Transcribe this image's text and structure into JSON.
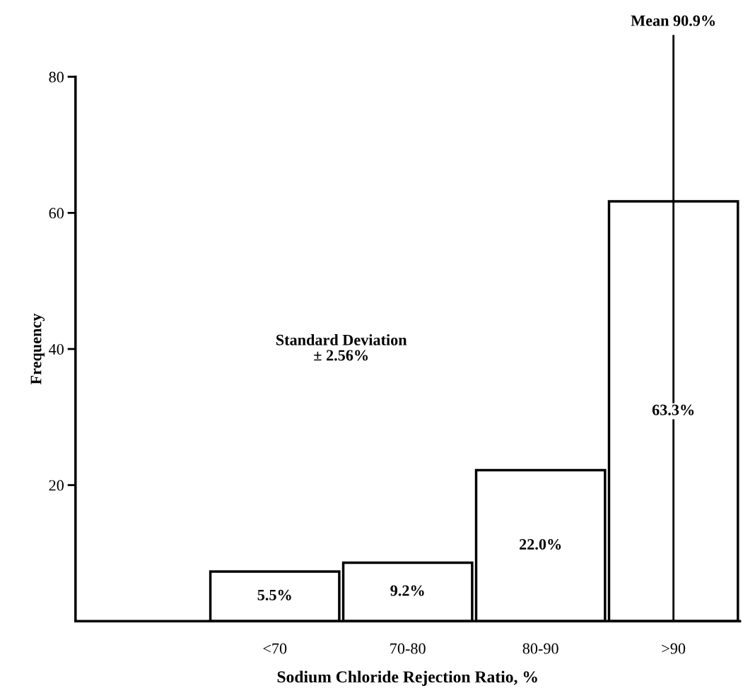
{
  "chart_data": {
    "type": "bar",
    "xlabel": "Sodium Chloride Rejection Ratio, %",
    "ylabel": "Frequency",
    "categories": [
      null,
      "<70",
      "70-80",
      "80-90",
      ">90"
    ],
    "values": [
      null,
      7.3,
      8.6,
      22.2,
      61.7
    ],
    "color": "#ffffff",
    "ylim": [
      0,
      80
    ],
    "yticks": [
      20,
      40,
      60,
      80
    ],
    "grid": false,
    "legend": false,
    "ref_lines": [
      {
        "axis": "x",
        "value": ">90",
        "label": "Mean 90.9%",
        "color": "#000000"
      }
    ],
    "annotations": [
      "5.5%",
      "9.2%",
      "22.0%",
      "63.3%",
      "Standard Deviation\n± 2.56%"
    ]
  }
}
